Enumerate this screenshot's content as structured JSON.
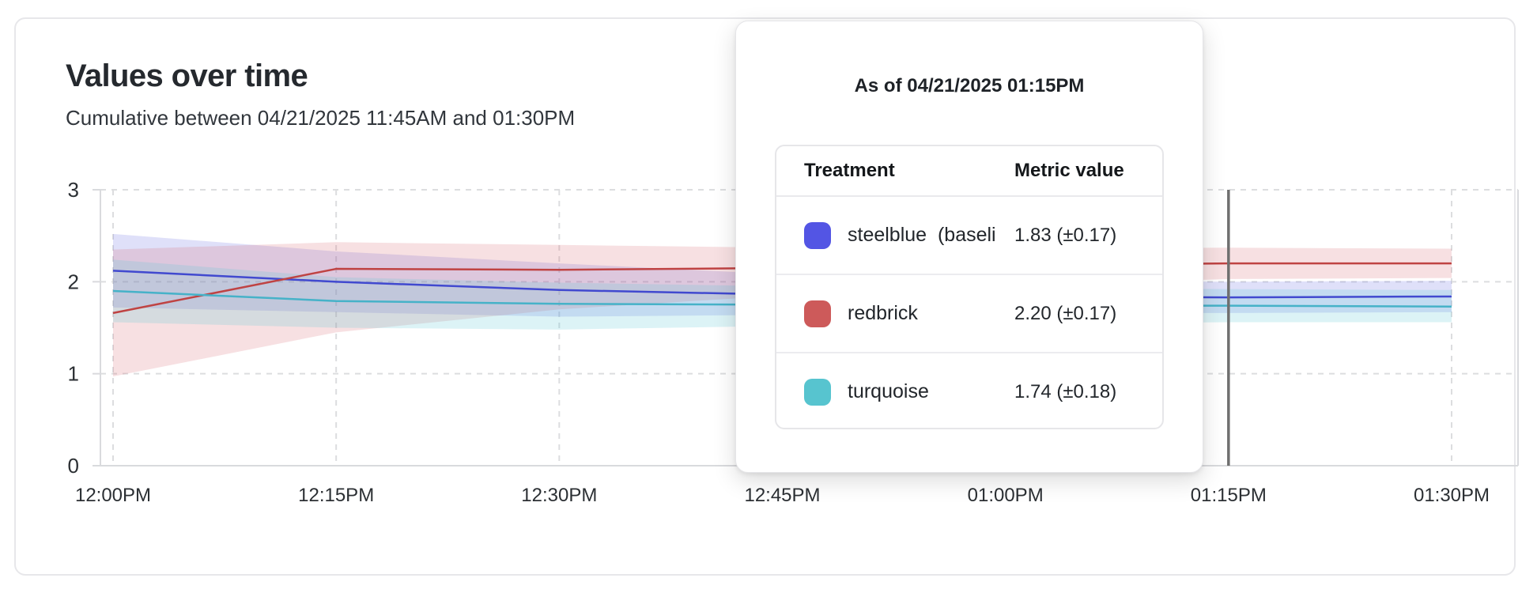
{
  "card": {
    "title": "Values over time",
    "subtitle": "Cumulative between 04/21/2025 11:45AM and 01:30PM"
  },
  "tooltip": {
    "title": "As of 04/21/2025 01:15PM",
    "columns": {
      "treatment": "Treatment",
      "metric": "Metric value"
    },
    "rows": [
      {
        "label": "steelblue  (baseli",
        "value": "1.83 (±0.17)",
        "color": "#5355e4"
      },
      {
        "label": "redbrick",
        "value": "2.20 (±0.17)",
        "color": "#cd5a5a"
      },
      {
        "label": "turquoise",
        "value": "1.74 (±0.18)",
        "color": "#57c4cf"
      }
    ]
  },
  "chart_data": {
    "type": "line",
    "x_labels": [
      "12:00PM",
      "12:15PM",
      "12:30PM",
      "12:45PM",
      "01:00PM",
      "01:15PM",
      "01:30PM"
    ],
    "y_ticks": [
      "0",
      "1",
      "2",
      "3"
    ],
    "ylim": [
      0,
      3
    ],
    "grid": true,
    "legend_position": "tooltip",
    "cursor": {
      "x_label": "01:15PM",
      "x_index": 5,
      "color": "#6f6f6f"
    },
    "series": [
      {
        "name": "steelblue (baseline)",
        "line_color": "#4149cf",
        "band_color": "rgba(93,99,226,0.20)",
        "values": [
          2.12,
          2.0,
          1.91,
          1.86,
          1.84,
          1.83,
          1.84
        ],
        "band_upper": [
          2.52,
          2.33,
          2.2,
          2.08,
          2.02,
          2.0,
          2.01
        ],
        "band_lower": [
          1.72,
          1.67,
          1.62,
          1.64,
          1.66,
          1.66,
          1.67
        ]
      },
      {
        "name": "redbrick",
        "line_color": "#bf4343",
        "band_color": "rgba(213,101,110,0.20)",
        "values": [
          1.66,
          2.14,
          2.13,
          2.15,
          2.17,
          2.2,
          2.2
        ],
        "band_upper": [
          2.35,
          2.43,
          2.4,
          2.37,
          2.36,
          2.37,
          2.36
        ],
        "band_lower": [
          0.97,
          1.45,
          1.7,
          1.85,
          1.95,
          2.03,
          2.04
        ]
      },
      {
        "name": "turquoise",
        "line_color": "#46b2c8",
        "band_color": "rgba(94,199,213,0.22)",
        "values": [
          1.9,
          1.79,
          1.76,
          1.75,
          1.74,
          1.74,
          1.73
        ],
        "band_upper": [
          2.24,
          2.05,
          1.99,
          1.95,
          1.93,
          1.92,
          1.91
        ],
        "band_lower": [
          1.56,
          1.5,
          1.48,
          1.52,
          1.54,
          1.56,
          1.56
        ]
      }
    ]
  }
}
